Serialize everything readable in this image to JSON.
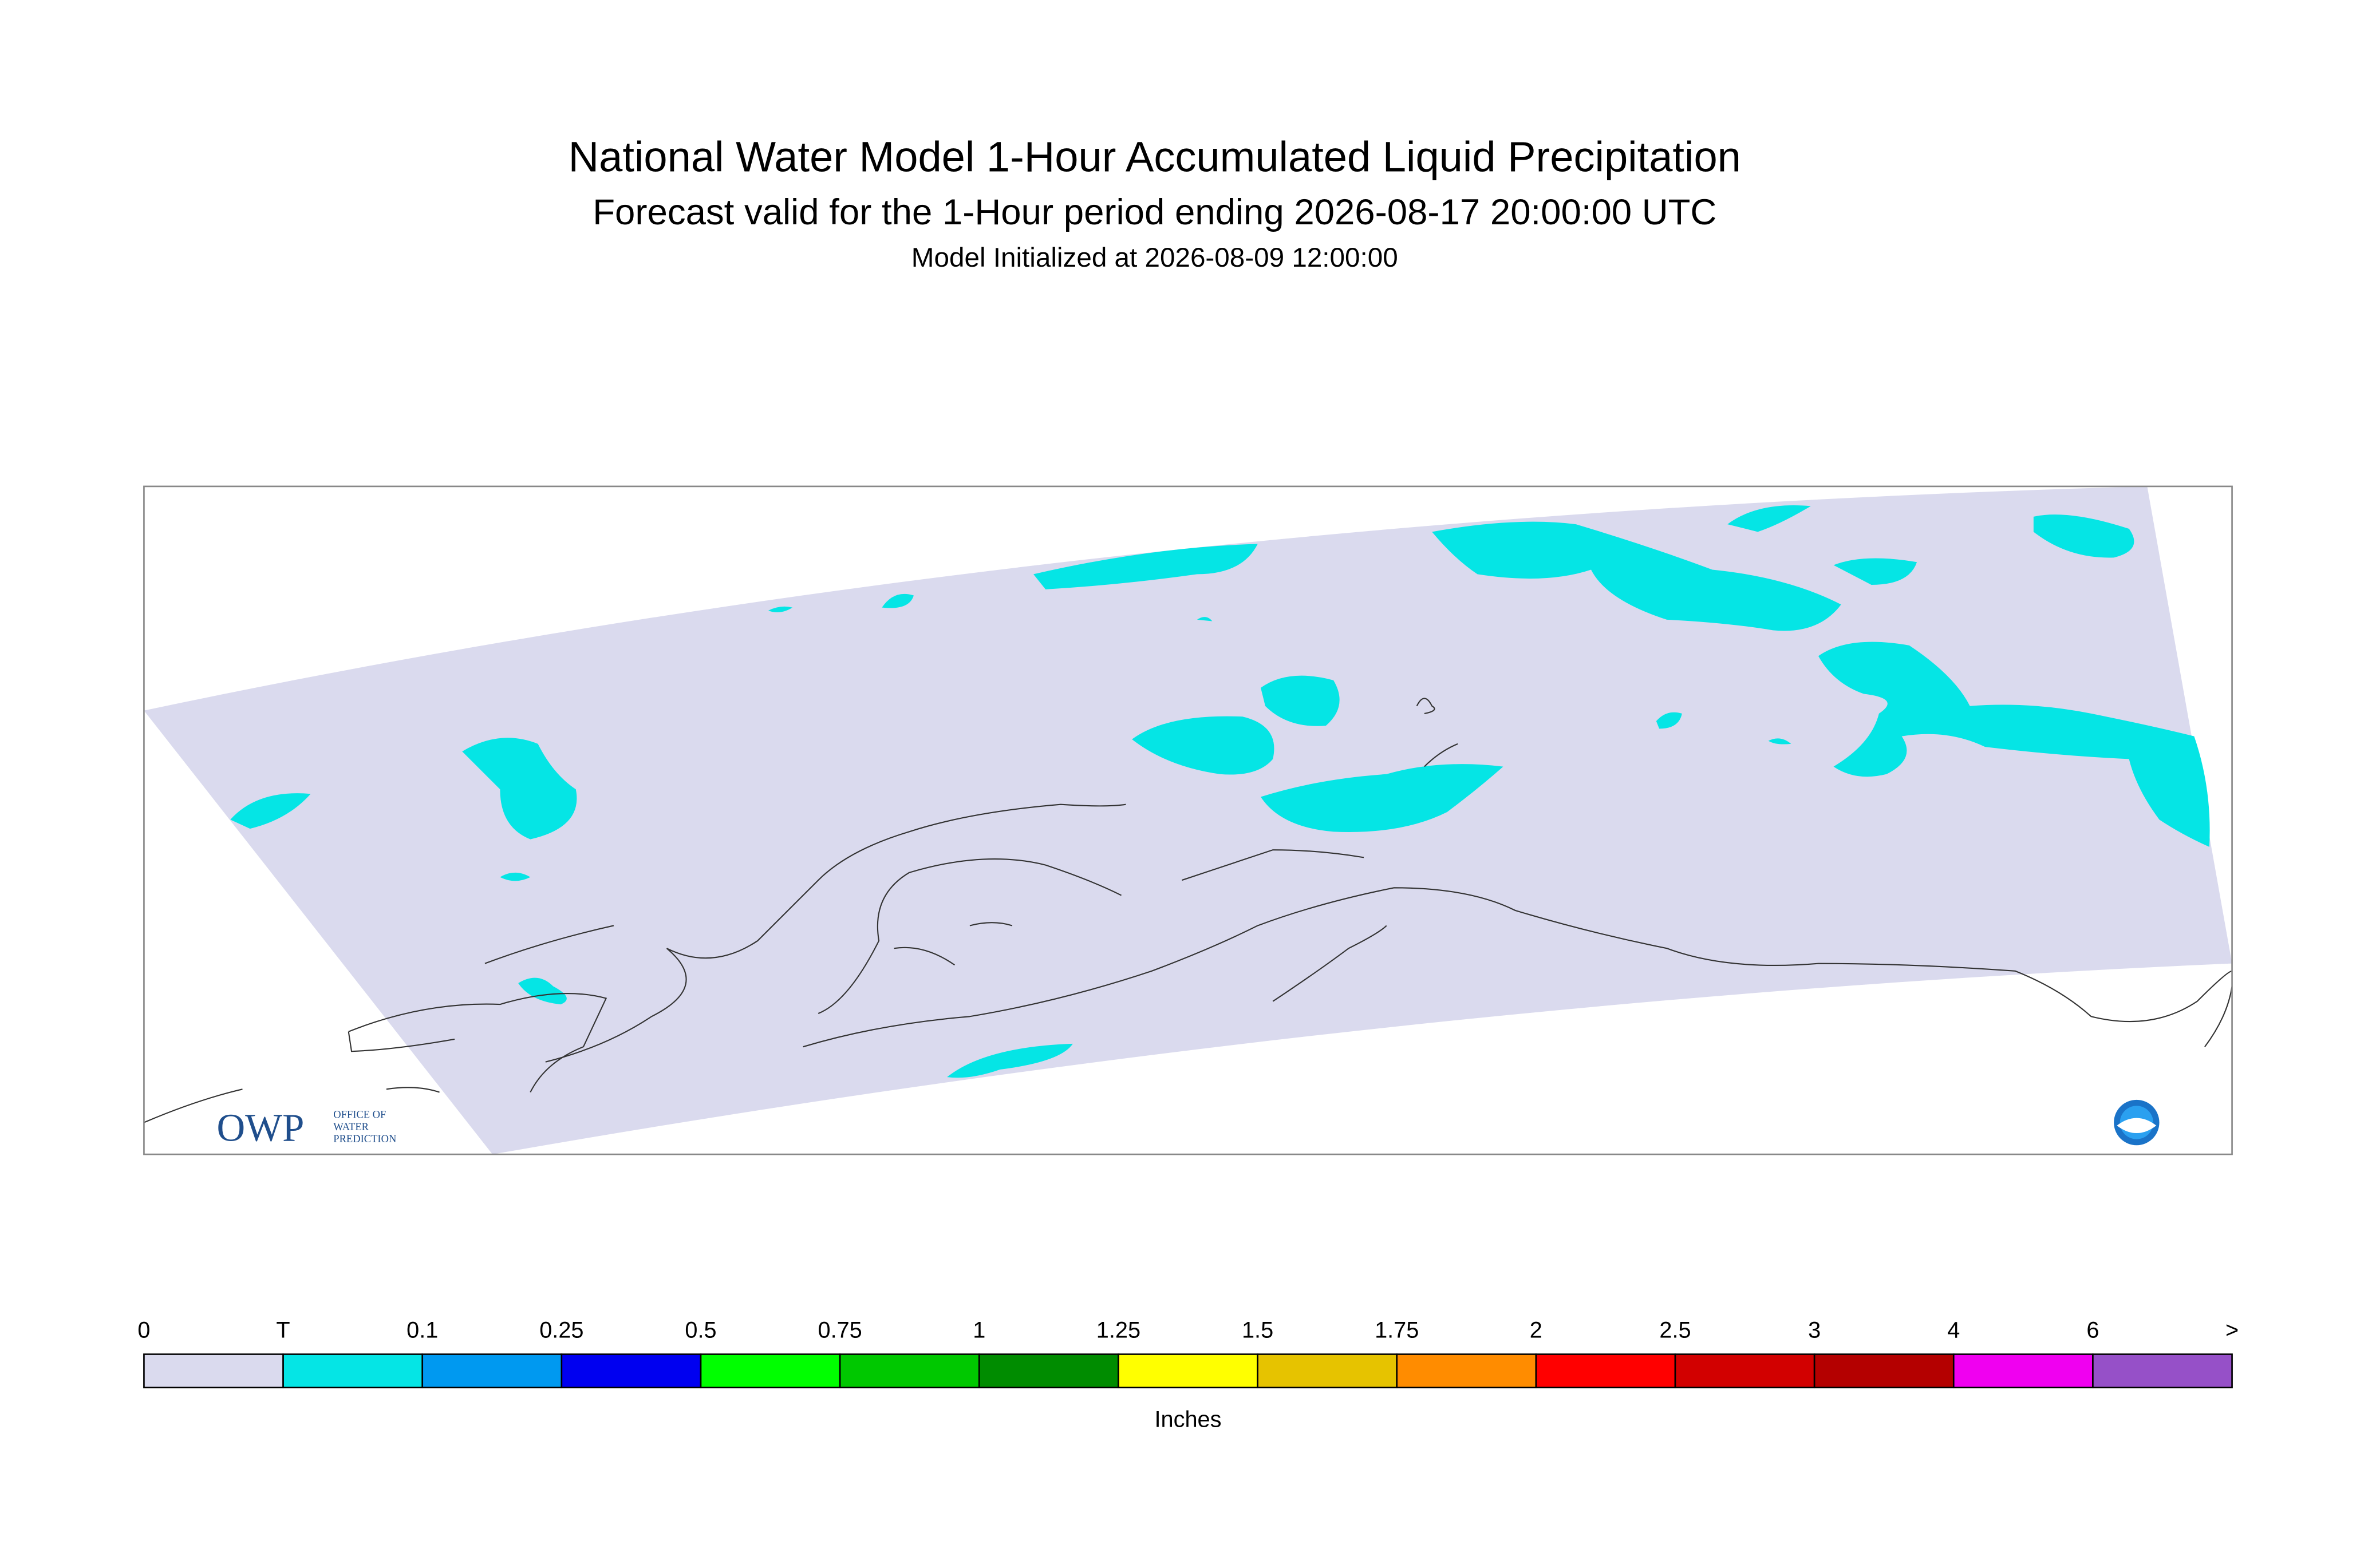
{
  "header": {
    "title": "National Water Model 1-Hour Accumulated Liquid Precipitation",
    "subtitle": "Forecast valid for the 1-Hour period ending 2026-08-17 20:00:00 UTC",
    "initialized": "Model Initialized at 2026-08-09 12:00:00"
  },
  "logo": {
    "acronym": "OWP",
    "line1": "OFFICE OF",
    "line2": "WATER",
    "line3": "PREDICTION"
  },
  "legend": {
    "labels": [
      "0",
      "T",
      "0.1",
      "0.25",
      "0.5",
      "0.75",
      "1",
      "1.25",
      "1.5",
      "1.75",
      "2",
      "2.5",
      "3",
      "4",
      "6",
      ">"
    ],
    "colors": [
      "#dadaee",
      "#05e5e5",
      "#0099f0",
      "#0000f0",
      "#00ff00",
      "#00c800",
      "#008c00",
      "#ffff00",
      "#e6c300",
      "#ff8c00",
      "#ff0000",
      "#d20000",
      "#b40000",
      "#f000f0",
      "#9650c8"
    ],
    "unit": "Inches"
  }
}
